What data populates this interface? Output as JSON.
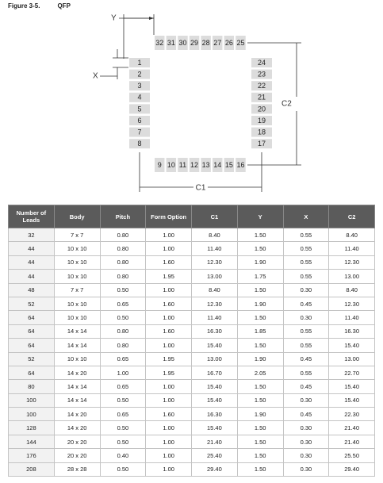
{
  "figure": {
    "label": "Figure 3-5.",
    "title": "QFP"
  },
  "diagram": {
    "top_pads": [
      32,
      31,
      30,
      29,
      28,
      27,
      26,
      25
    ],
    "left_pads": [
      1,
      2,
      3,
      4,
      5,
      6,
      7,
      8
    ],
    "right_pads": [
      24,
      23,
      22,
      21,
      20,
      19,
      18,
      17
    ],
    "bottom_pads": [
      9,
      10,
      11,
      12,
      13,
      14,
      15,
      16
    ],
    "labels": {
      "y": "Y",
      "x": "X",
      "c1": "C1",
      "c2": "C2"
    }
  },
  "table": {
    "header": [
      "Number of Leads",
      "Body",
      "Pitch",
      "Form Option",
      "C1",
      "Y",
      "X",
      "C2"
    ],
    "rows": [
      [
        "32",
        "7 x 7",
        "0.80",
        "1.00",
        "8.40",
        "1.50",
        "0.55",
        "8.40"
      ],
      [
        "44",
        "10 x 10",
        "0.80",
        "1.00",
        "11.40",
        "1.50",
        "0.55",
        "11.40"
      ],
      [
        "44",
        "10 x 10",
        "0.80",
        "1.60",
        "12.30",
        "1.90",
        "0.55",
        "12.30"
      ],
      [
        "44",
        "10 x 10",
        "0.80",
        "1.95",
        "13.00",
        "1.75",
        "0.55",
        "13.00"
      ],
      [
        "48",
        "7 x 7",
        "0.50",
        "1.00",
        "8.40",
        "1.50",
        "0.30",
        "8.40"
      ],
      [
        "52",
        "10 x 10",
        "0.65",
        "1.60",
        "12.30",
        "1.90",
        "0.45",
        "12.30"
      ],
      [
        "64",
        "10 x 10",
        "0.50",
        "1.00",
        "11.40",
        "1.50",
        "0.30",
        "11.40"
      ],
      [
        "64",
        "14 x 14",
        "0.80",
        "1.60",
        "16.30",
        "1.85",
        "0.55",
        "16.30"
      ],
      [
        "64",
        "14 x 14",
        "0.80",
        "1.00",
        "15.40",
        "1.50",
        "0.55",
        "15.40"
      ],
      [
        "52",
        "10 x 10",
        "0.65",
        "1.95",
        "13.00",
        "1.90",
        "0.45",
        "13.00"
      ],
      [
        "64",
        "14 x 20",
        "1.00",
        "1.95",
        "16.70",
        "2.05",
        "0.55",
        "22.70"
      ],
      [
        "80",
        "14 x 14",
        "0.65",
        "1.00",
        "15.40",
        "1.50",
        "0.45",
        "15.40"
      ],
      [
        "100",
        "14 x 14",
        "0.50",
        "1.00",
        "15.40",
        "1.50",
        "0.30",
        "15.40"
      ],
      [
        "100",
        "14 x 20",
        "0.65",
        "1.60",
        "16.30",
        "1.90",
        "0.45",
        "22.30"
      ],
      [
        "128",
        "14 x 20",
        "0.50",
        "1.00",
        "15.40",
        "1.50",
        "0.30",
        "21.40"
      ],
      [
        "144",
        "20 x 20",
        "0.50",
        "1.00",
        "21.40",
        "1.50",
        "0.30",
        "21.40"
      ],
      [
        "176",
        "20 x 20",
        "0.40",
        "1.00",
        "25.40",
        "1.50",
        "0.30",
        "25.50"
      ],
      [
        "208",
        "28 x 28",
        "0.50",
        "1.00",
        "29.40",
        "1.50",
        "0.30",
        "29.40"
      ]
    ]
  }
}
